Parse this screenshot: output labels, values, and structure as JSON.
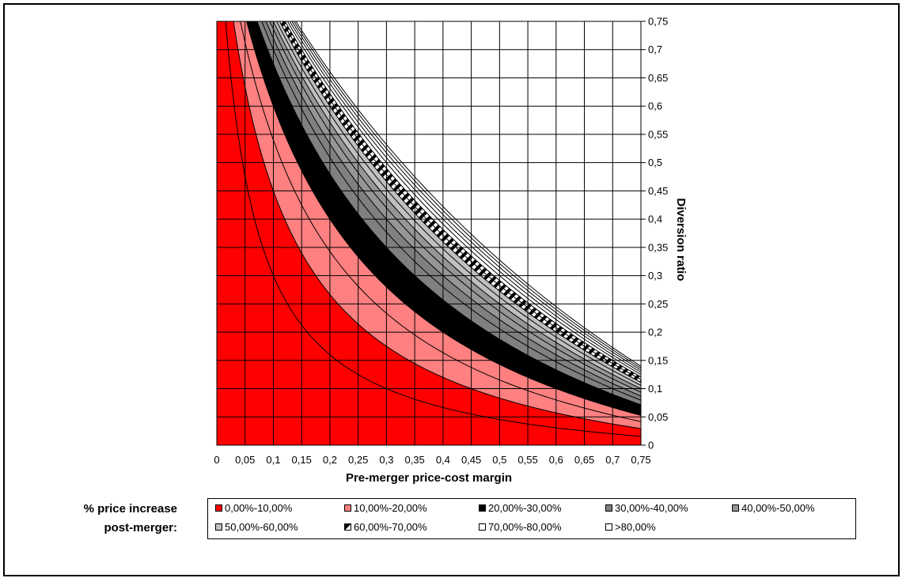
{
  "chart_data": {
    "type": "area",
    "subtype": "contour",
    "xlabel": "Pre-merger price-cost margin",
    "ylabel": "Diversion ratio",
    "x_ticks": [
      "0",
      "0,05",
      "0,1",
      "0,15",
      "0,2",
      "0,25",
      "0,3",
      "0,35",
      "0,4",
      "0,45",
      "0,5",
      "0,55",
      "0,6",
      "0,65",
      "0,7",
      "0,75"
    ],
    "y_ticks": [
      "0",
      "0,05",
      "0,1",
      "0,15",
      "0,2",
      "0,25",
      "0,3",
      "0,35",
      "0,4",
      "0,45",
      "0,5",
      "0,55",
      "0,6",
      "0,65",
      "0,7",
      "0,75"
    ],
    "xlim": [
      0,
      0.75
    ],
    "ylim": [
      0,
      0.75
    ],
    "grid": true,
    "legend_position": "bottom",
    "function": "price increase = margin * diversion / (1 - margin - diversion)",
    "contour_levels": [
      0.1,
      0.2,
      0.3,
      0.4,
      0.5,
      0.6,
      0.7,
      0.8
    ],
    "bands": [
      {
        "name": "0,00%-10,00%",
        "color": "#ff0000",
        "pattern": "solid"
      },
      {
        "name": "10,00%-20,00%",
        "color": "#ff8080",
        "pattern": "solid"
      },
      {
        "name": "20,00%-30,00%",
        "color": "#000000",
        "pattern": "solid"
      },
      {
        "name": "30,00%-40,00%",
        "color": "#808080",
        "pattern": "solid"
      },
      {
        "name": "40,00%-50,00%",
        "color": "#969696",
        "pattern": "solid"
      },
      {
        "name": "50,00%-60,00%",
        "color": "#c0c0c0",
        "pattern": "solid"
      },
      {
        "name": "60,00%-70,00%",
        "color": "#000000",
        "pattern": "diagonal-stripes"
      },
      {
        "name": "70,00%-80,00%",
        "color": "#ffffff",
        "pattern": "solid"
      },
      {
        "name": ">80,00%",
        "color": "#ffffff",
        "pattern": "solid"
      }
    ]
  },
  "legend": {
    "caption_line1": "% price increase",
    "caption_line2": "post-merger:"
  }
}
